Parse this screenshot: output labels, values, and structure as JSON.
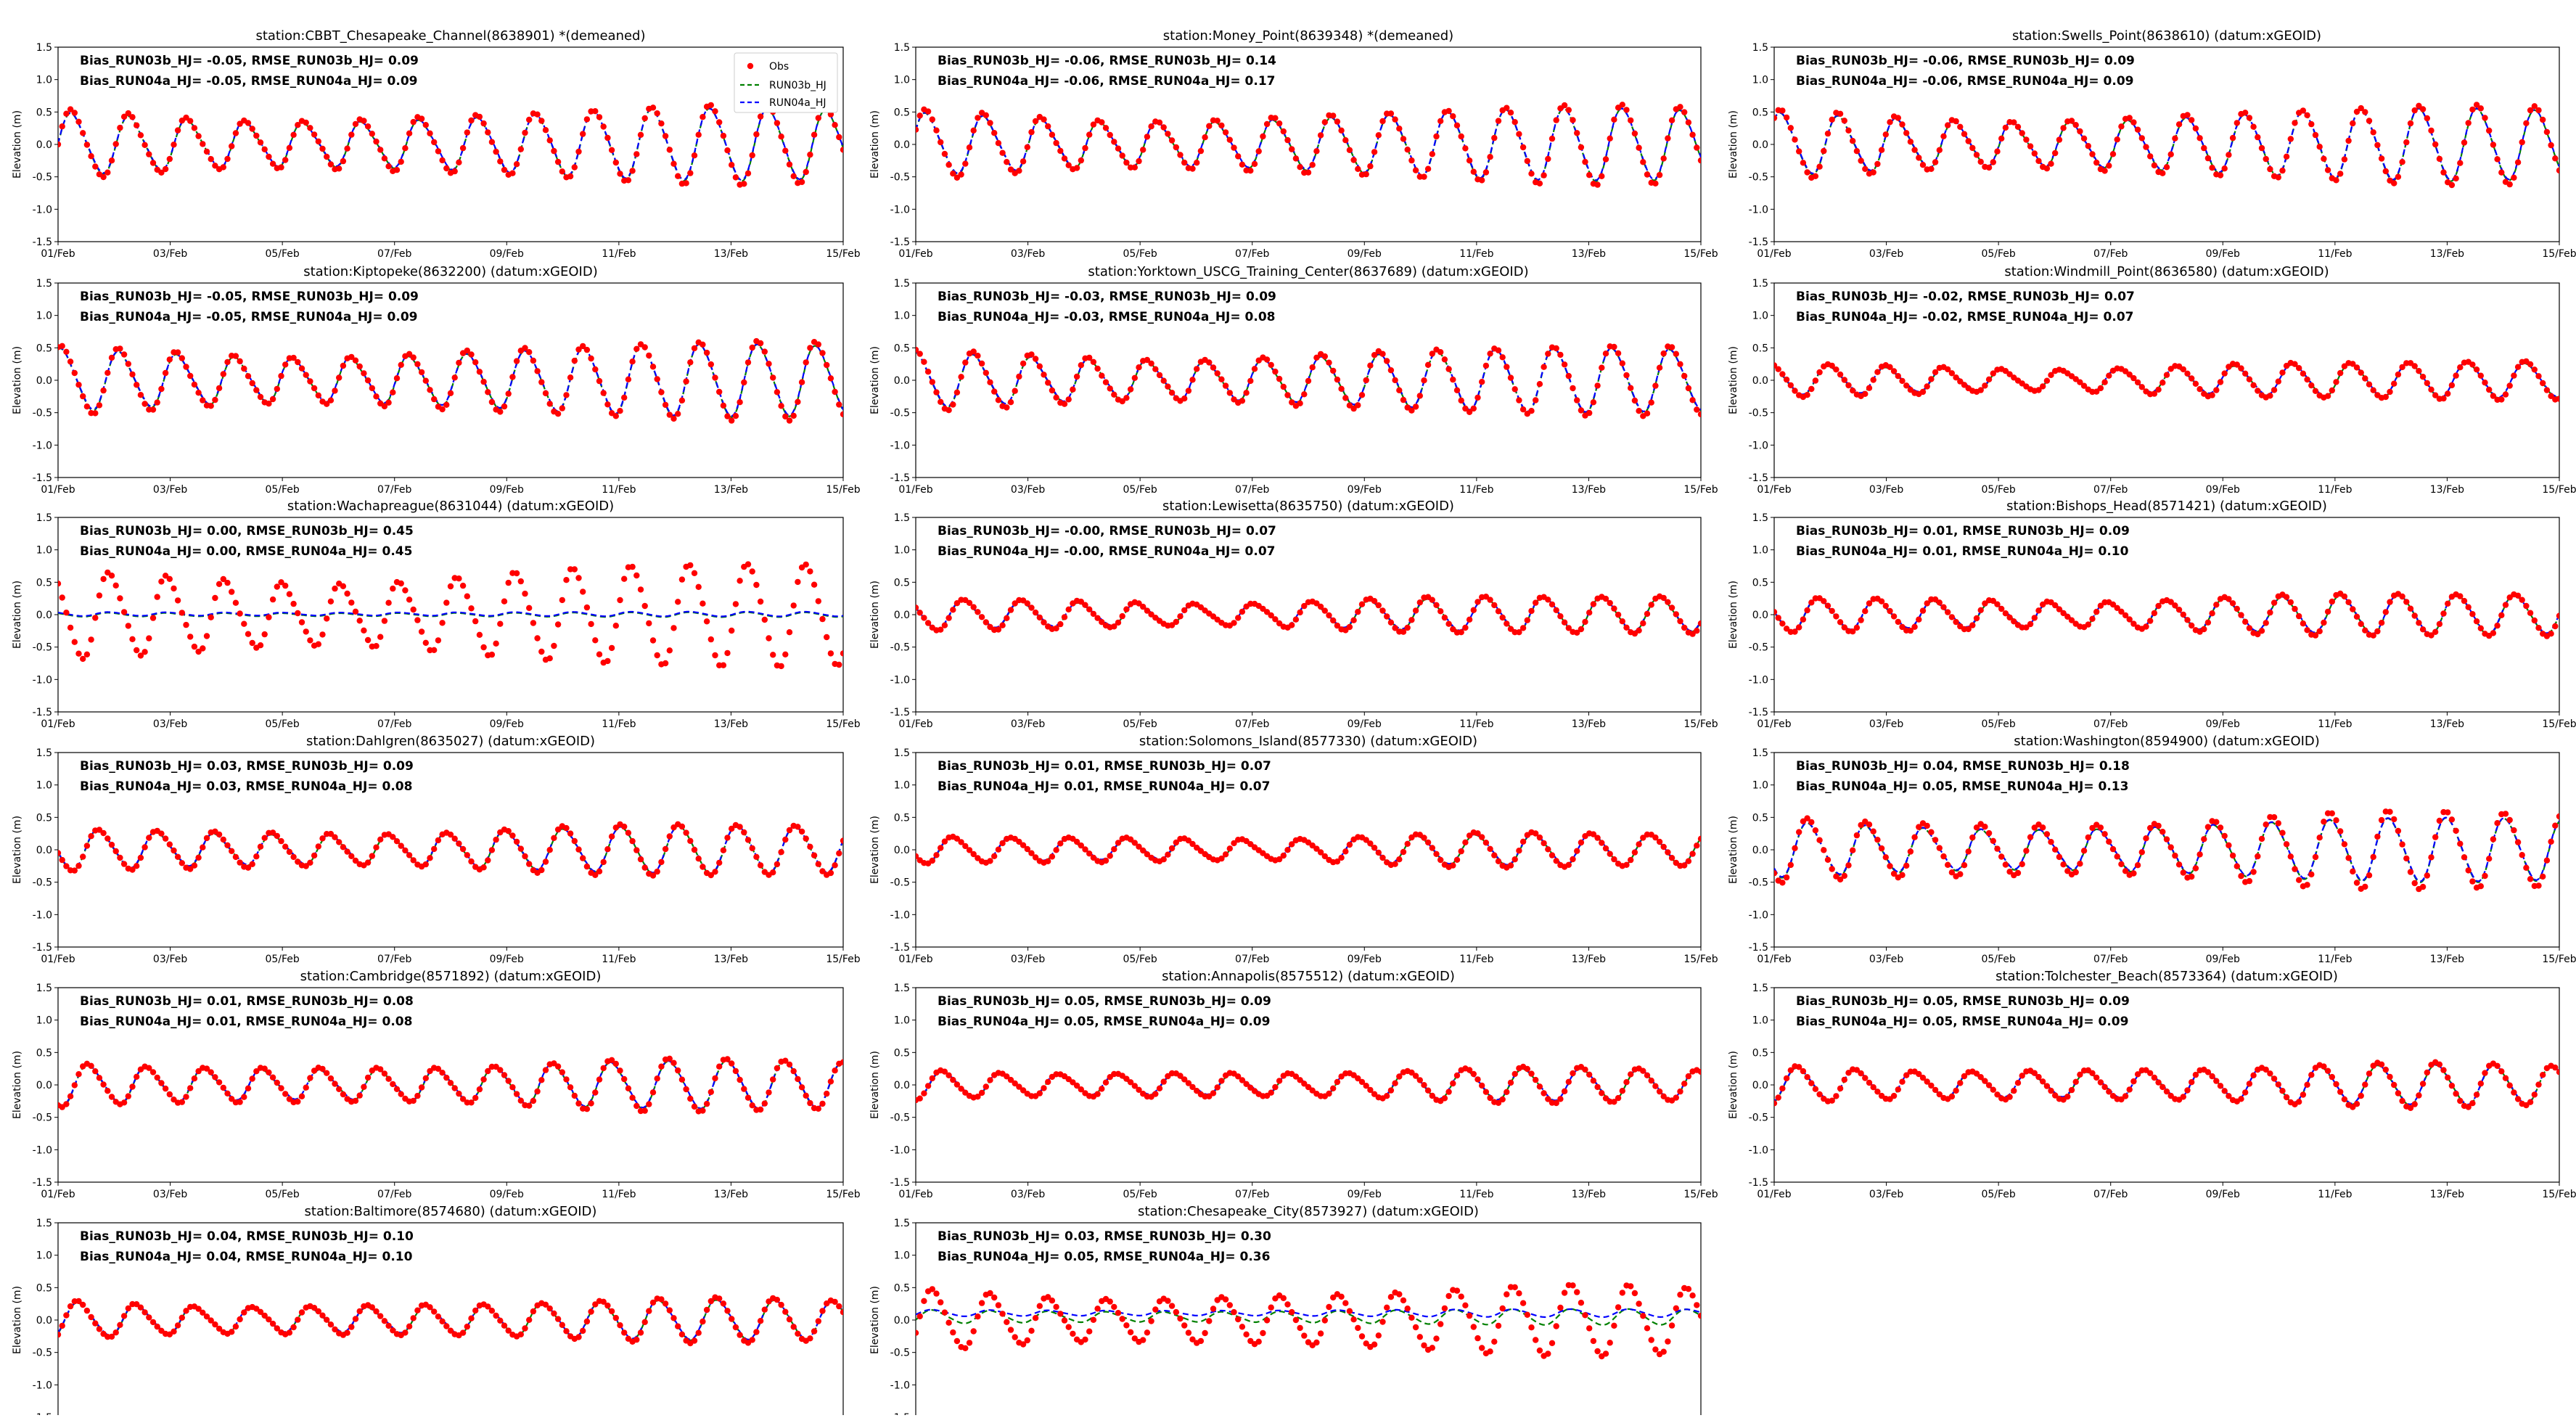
{
  "figure": {
    "ylabel": "Elevation (m)",
    "yticks": [
      "1.5",
      "1.0",
      "0.5",
      "0.0",
      "-0.5",
      "-1.0",
      "-1.5"
    ],
    "xticks": [
      "01/Feb",
      "03/Feb",
      "05/Feb",
      "07/Feb",
      "09/Feb",
      "11/Feb",
      "13/Feb",
      "15/Feb"
    ],
    "legend": [
      "Obs",
      "RUN03b_HJ",
      "RUN04a_HJ"
    ]
  },
  "colors": {
    "obs": "#ff0000",
    "run03b": "#008000",
    "run04a": "#0000ff",
    "axis": "#000000"
  },
  "chart_data": [
    {
      "type": "line",
      "title": "station:CBBT_Chesapeake_Channel(8638901) *(demeaned)",
      "stats": [
        "Bias_RUN03b_HJ= -0.05, RMSE_RUN03b_HJ=  0.09",
        "Bias_RUN04a_HJ= -0.05, RMSE_RUN04a_HJ=  0.09"
      ],
      "xlim": [
        "2023-02-01",
        "2023-02-15"
      ],
      "ylim": [
        -1.5,
        1.5
      ],
      "ylabel": "Elevation (m)",
      "series": [
        {
          "name": "Obs",
          "amplitude": 0.45,
          "mean": 0.0
        },
        {
          "name": "RUN03b_HJ",
          "amplitude": 0.45,
          "mean": 0.0
        },
        {
          "name": "RUN04a_HJ",
          "amplitude": 0.45,
          "mean": 0.0
        }
      ]
    },
    {
      "type": "line",
      "title": "station:Money_Point(8639348) *(demeaned)",
      "stats": [
        "Bias_RUN03b_HJ= -0.06, RMSE_RUN03b_HJ=  0.14",
        "Bias_RUN04a_HJ= -0.06, RMSE_RUN04a_HJ=  0.17"
      ],
      "xlim": [
        "2023-02-01",
        "2023-02-15"
      ],
      "ylim": [
        -1.5,
        1.5
      ],
      "ylabel": "Elevation (m)",
      "series": [
        {
          "name": "Obs",
          "amplitude": 0.45,
          "mean": 0.0
        },
        {
          "name": "RUN03b_HJ",
          "amplitude": 0.45,
          "mean": 0.0
        },
        {
          "name": "RUN04a_HJ",
          "amplitude": 0.45,
          "mean": 0.0
        }
      ]
    },
    {
      "type": "line",
      "title": "station:Swells_Point(8638610) (datum:xGEOID)",
      "stats": [
        "Bias_RUN03b_HJ= -0.06, RMSE_RUN03b_HJ=  0.09",
        "Bias_RUN04a_HJ= -0.06, RMSE_RUN04a_HJ=  0.09"
      ],
      "xlim": [
        "2023-02-01",
        "2023-02-15"
      ],
      "ylim": [
        -1.5,
        1.5
      ],
      "ylabel": "Elevation (m)",
      "series": [
        {
          "name": "Obs",
          "amplitude": 0.45,
          "mean": 0.0
        },
        {
          "name": "RUN03b_HJ",
          "amplitude": 0.45,
          "mean": 0.0
        },
        {
          "name": "RUN04a_HJ",
          "amplitude": 0.45,
          "mean": 0.0
        }
      ]
    },
    {
      "type": "line",
      "title": "station:Kiptopeke(8632200) (datum:xGEOID)",
      "stats": [
        "Bias_RUN03b_HJ= -0.05, RMSE_RUN03b_HJ=  0.09",
        "Bias_RUN04a_HJ= -0.05, RMSE_RUN04a_HJ=  0.09"
      ],
      "xlim": [
        "2023-02-01",
        "2023-02-15"
      ],
      "ylim": [
        -1.5,
        1.5
      ],
      "ylabel": "Elevation (m)",
      "series": [
        {
          "name": "Obs",
          "amplitude": 0.45,
          "mean": 0.0
        },
        {
          "name": "RUN03b_HJ",
          "amplitude": 0.45,
          "mean": 0.0
        },
        {
          "name": "RUN04a_HJ",
          "amplitude": 0.45,
          "mean": 0.0
        }
      ]
    },
    {
      "type": "line",
      "title": "station:Yorktown_USCG_Training_Center(8637689) (datum:xGEOID)",
      "stats": [
        "Bias_RUN03b_HJ= -0.03, RMSE_RUN03b_HJ=  0.09",
        "Bias_RUN04a_HJ= -0.03, RMSE_RUN04a_HJ=  0.08"
      ],
      "xlim": [
        "2023-02-01",
        "2023-02-15"
      ],
      "ylim": [
        -1.5,
        1.5
      ],
      "ylabel": "Elevation (m)",
      "series": [
        {
          "name": "Obs",
          "amplitude": 0.4,
          "mean": 0.0
        },
        {
          "name": "RUN03b_HJ",
          "amplitude": 0.4,
          "mean": 0.0
        },
        {
          "name": "RUN04a_HJ",
          "amplitude": 0.4,
          "mean": 0.0
        }
      ]
    },
    {
      "type": "line",
      "title": "station:Windmill_Point(8636580) (datum:xGEOID)",
      "stats": [
        "Bias_RUN03b_HJ= -0.02, RMSE_RUN03b_HJ=  0.07",
        "Bias_RUN04a_HJ= -0.02, RMSE_RUN04a_HJ=  0.07"
      ],
      "xlim": [
        "2023-02-01",
        "2023-02-15"
      ],
      "ylim": [
        -1.5,
        1.5
      ],
      "ylabel": "Elevation (m)",
      "series": [
        {
          "name": "Obs",
          "amplitude": 0.22,
          "mean": 0.0
        },
        {
          "name": "RUN03b_HJ",
          "amplitude": 0.22,
          "mean": 0.0
        },
        {
          "name": "RUN04a_HJ",
          "amplitude": 0.22,
          "mean": 0.0
        }
      ]
    },
    {
      "type": "line",
      "title": "station:Wachapreague(8631044) (datum:xGEOID)",
      "stats": [
        "Bias_RUN03b_HJ=  0.00, RMSE_RUN03b_HJ=  0.45",
        "Bias_RUN04a_HJ=  0.00, RMSE_RUN04a_HJ=  0.45"
      ],
      "xlim": [
        "2023-02-01",
        "2023-02-15"
      ],
      "ylim": [
        -1.5,
        1.5
      ],
      "ylabel": "Elevation (m)",
      "series": [
        {
          "name": "Obs",
          "amplitude": 0.6,
          "mean": 0.0
        },
        {
          "name": "RUN03b_HJ",
          "amplitude": 0.03,
          "mean": 0.0
        },
        {
          "name": "RUN04a_HJ",
          "amplitude": 0.03,
          "mean": 0.0
        }
      ]
    },
    {
      "type": "line",
      "title": "station:Lewisetta(8635750) (datum:xGEOID)",
      "stats": [
        "Bias_RUN03b_HJ= -0.00, RMSE_RUN03b_HJ=  0.07",
        "Bias_RUN04a_HJ= -0.00, RMSE_RUN04a_HJ=  0.07"
      ],
      "xlim": [
        "2023-02-01",
        "2023-02-15"
      ],
      "ylim": [
        -1.5,
        1.5
      ],
      "ylabel": "Elevation (m)",
      "series": [
        {
          "name": "Obs",
          "amplitude": 0.22,
          "mean": 0.0
        },
        {
          "name": "RUN03b_HJ",
          "amplitude": 0.22,
          "mean": 0.0
        },
        {
          "name": "RUN04a_HJ",
          "amplitude": 0.22,
          "mean": 0.0
        }
      ]
    },
    {
      "type": "line",
      "title": "station:Bishops_Head(8571421) (datum:xGEOID)",
      "stats": [
        "Bias_RUN03b_HJ=  0.01, RMSE_RUN03b_HJ=  0.09",
        "Bias_RUN04a_HJ=  0.01, RMSE_RUN04a_HJ=  0.10"
      ],
      "xlim": [
        "2023-02-01",
        "2023-02-15"
      ],
      "ylim": [
        -1.5,
        1.5
      ],
      "ylabel": "Elevation (m)",
      "series": [
        {
          "name": "Obs",
          "amplitude": 0.25,
          "mean": 0.0
        },
        {
          "name": "RUN03b_HJ",
          "amplitude": 0.25,
          "mean": 0.0
        },
        {
          "name": "RUN04a_HJ",
          "amplitude": 0.25,
          "mean": 0.0
        }
      ]
    },
    {
      "type": "line",
      "title": "station:Dahlgren(8635027) (datum:xGEOID)",
      "stats": [
        "Bias_RUN03b_HJ=  0.03, RMSE_RUN03b_HJ=  0.09",
        "Bias_RUN04a_HJ=  0.03, RMSE_RUN04a_HJ=  0.08"
      ],
      "xlim": [
        "2023-02-01",
        "2023-02-15"
      ],
      "ylim": [
        -1.5,
        1.5
      ],
      "ylabel": "Elevation (m)",
      "series": [
        {
          "name": "Obs",
          "amplitude": 0.3,
          "mean": 0.0
        },
        {
          "name": "RUN03b_HJ",
          "amplitude": 0.3,
          "mean": 0.0
        },
        {
          "name": "RUN04a_HJ",
          "amplitude": 0.3,
          "mean": 0.0
        }
      ]
    },
    {
      "type": "line",
      "title": "station:Solomons_Island(8577330) (datum:xGEOID)",
      "stats": [
        "Bias_RUN03b_HJ=  0.01, RMSE_RUN03b_HJ=  0.07",
        "Bias_RUN04a_HJ=  0.01, RMSE_RUN04a_HJ=  0.07"
      ],
      "xlim": [
        "2023-02-01",
        "2023-02-15"
      ],
      "ylim": [
        -1.5,
        1.5
      ],
      "ylabel": "Elevation (m)",
      "series": [
        {
          "name": "Obs",
          "amplitude": 0.2,
          "mean": 0.0
        },
        {
          "name": "RUN03b_HJ",
          "amplitude": 0.2,
          "mean": 0.0
        },
        {
          "name": "RUN04a_HJ",
          "amplitude": 0.2,
          "mean": 0.0
        }
      ]
    },
    {
      "type": "line",
      "title": "station:Washington(8594900) (datum:xGEOID)",
      "stats": [
        "Bias_RUN03b_HJ=  0.04, RMSE_RUN03b_HJ=  0.18",
        "Bias_RUN04a_HJ=  0.05, RMSE_RUN04a_HJ=  0.13"
      ],
      "xlim": [
        "2023-02-01",
        "2023-02-15"
      ],
      "ylim": [
        -1.5,
        1.5
      ],
      "ylabel": "Elevation (m)",
      "series": [
        {
          "name": "Obs",
          "amplitude": 0.45,
          "mean": 0.0
        },
        {
          "name": "RUN03b_HJ",
          "amplitude": 0.4,
          "mean": 0.0
        },
        {
          "name": "RUN04a_HJ",
          "amplitude": 0.4,
          "mean": 0.0
        }
      ]
    },
    {
      "type": "line",
      "title": "station:Cambridge(8571892) (datum:xGEOID)",
      "stats": [
        "Bias_RUN03b_HJ=  0.01, RMSE_RUN03b_HJ=  0.08",
        "Bias_RUN04a_HJ=  0.01, RMSE_RUN04a_HJ=  0.08"
      ],
      "xlim": [
        "2023-02-01",
        "2023-02-15"
      ],
      "ylim": [
        -1.5,
        1.5
      ],
      "ylabel": "Elevation (m)",
      "series": [
        {
          "name": "Obs",
          "amplitude": 0.3,
          "mean": 0.0
        },
        {
          "name": "RUN03b_HJ",
          "amplitude": 0.3,
          "mean": 0.0
        },
        {
          "name": "RUN04a_HJ",
          "amplitude": 0.3,
          "mean": 0.0
        }
      ]
    },
    {
      "type": "line",
      "title": "station:Annapolis(8575512) (datum:xGEOID)",
      "stats": [
        "Bias_RUN03b_HJ=  0.05, RMSE_RUN03b_HJ=  0.09",
        "Bias_RUN04a_HJ=  0.05, RMSE_RUN04a_HJ=  0.09"
      ],
      "xlim": [
        "2023-02-01",
        "2023-02-15"
      ],
      "ylim": [
        -1.5,
        1.5
      ],
      "ylabel": "Elevation (m)",
      "series": [
        {
          "name": "Obs",
          "amplitude": 0.2,
          "mean": 0.0
        },
        {
          "name": "RUN03b_HJ",
          "amplitude": 0.2,
          "mean": 0.0
        },
        {
          "name": "RUN04a_HJ",
          "amplitude": 0.2,
          "mean": 0.0
        }
      ]
    },
    {
      "type": "line",
      "title": "station:Tolchester_Beach(8573364) (datum:xGEOID)",
      "stats": [
        "Bias_RUN03b_HJ=  0.05, RMSE_RUN03b_HJ=  0.09",
        "Bias_RUN04a_HJ=  0.05, RMSE_RUN04a_HJ=  0.09"
      ],
      "xlim": [
        "2023-02-01",
        "2023-02-15"
      ],
      "ylim": [
        -1.5,
        1.5
      ],
      "ylabel": "Elevation (m)",
      "series": [
        {
          "name": "Obs",
          "amplitude": 0.25,
          "mean": 0.0
        },
        {
          "name": "RUN03b_HJ",
          "amplitude": 0.25,
          "mean": 0.0
        },
        {
          "name": "RUN04a_HJ",
          "amplitude": 0.25,
          "mean": 0.0
        }
      ]
    },
    {
      "type": "line",
      "title": "station:Baltimore(8574680) (datum:xGEOID)",
      "stats": [
        "Bias_RUN03b_HJ=  0.04, RMSE_RUN03b_HJ=  0.10",
        "Bias_RUN04a_HJ=  0.04, RMSE_RUN04a_HJ=  0.10"
      ],
      "xlim": [
        "2023-02-01",
        "2023-02-15"
      ],
      "ylim": [
        -1.5,
        1.5
      ],
      "ylabel": "Elevation (m)",
      "series": [
        {
          "name": "Obs",
          "amplitude": 0.25,
          "mean": 0.0
        },
        {
          "name": "RUN03b_HJ",
          "amplitude": 0.25,
          "mean": 0.0
        },
        {
          "name": "RUN04a_HJ",
          "amplitude": 0.25,
          "mean": 0.0
        }
      ]
    },
    {
      "type": "line",
      "title": "station:Chesapeake_City(8573927) (datum:xGEOID)",
      "stats": [
        "Bias_RUN03b_HJ=  0.03, RMSE_RUN03b_HJ=  0.30",
        "Bias_RUN04a_HJ=  0.05, RMSE_RUN04a_HJ=  0.36"
      ],
      "xlim": [
        "2023-02-01",
        "2023-02-15"
      ],
      "ylim": [
        -1.5,
        1.5
      ],
      "ylabel": "Elevation (m)",
      "series": [
        {
          "name": "Obs",
          "amplitude": 0.4,
          "mean": 0.0
        },
        {
          "name": "RUN03b_HJ",
          "amplitude": 0.1,
          "mean": 0.05
        },
        {
          "name": "RUN04a_HJ",
          "amplitude": 0.05,
          "mean": 0.1
        }
      ]
    }
  ]
}
